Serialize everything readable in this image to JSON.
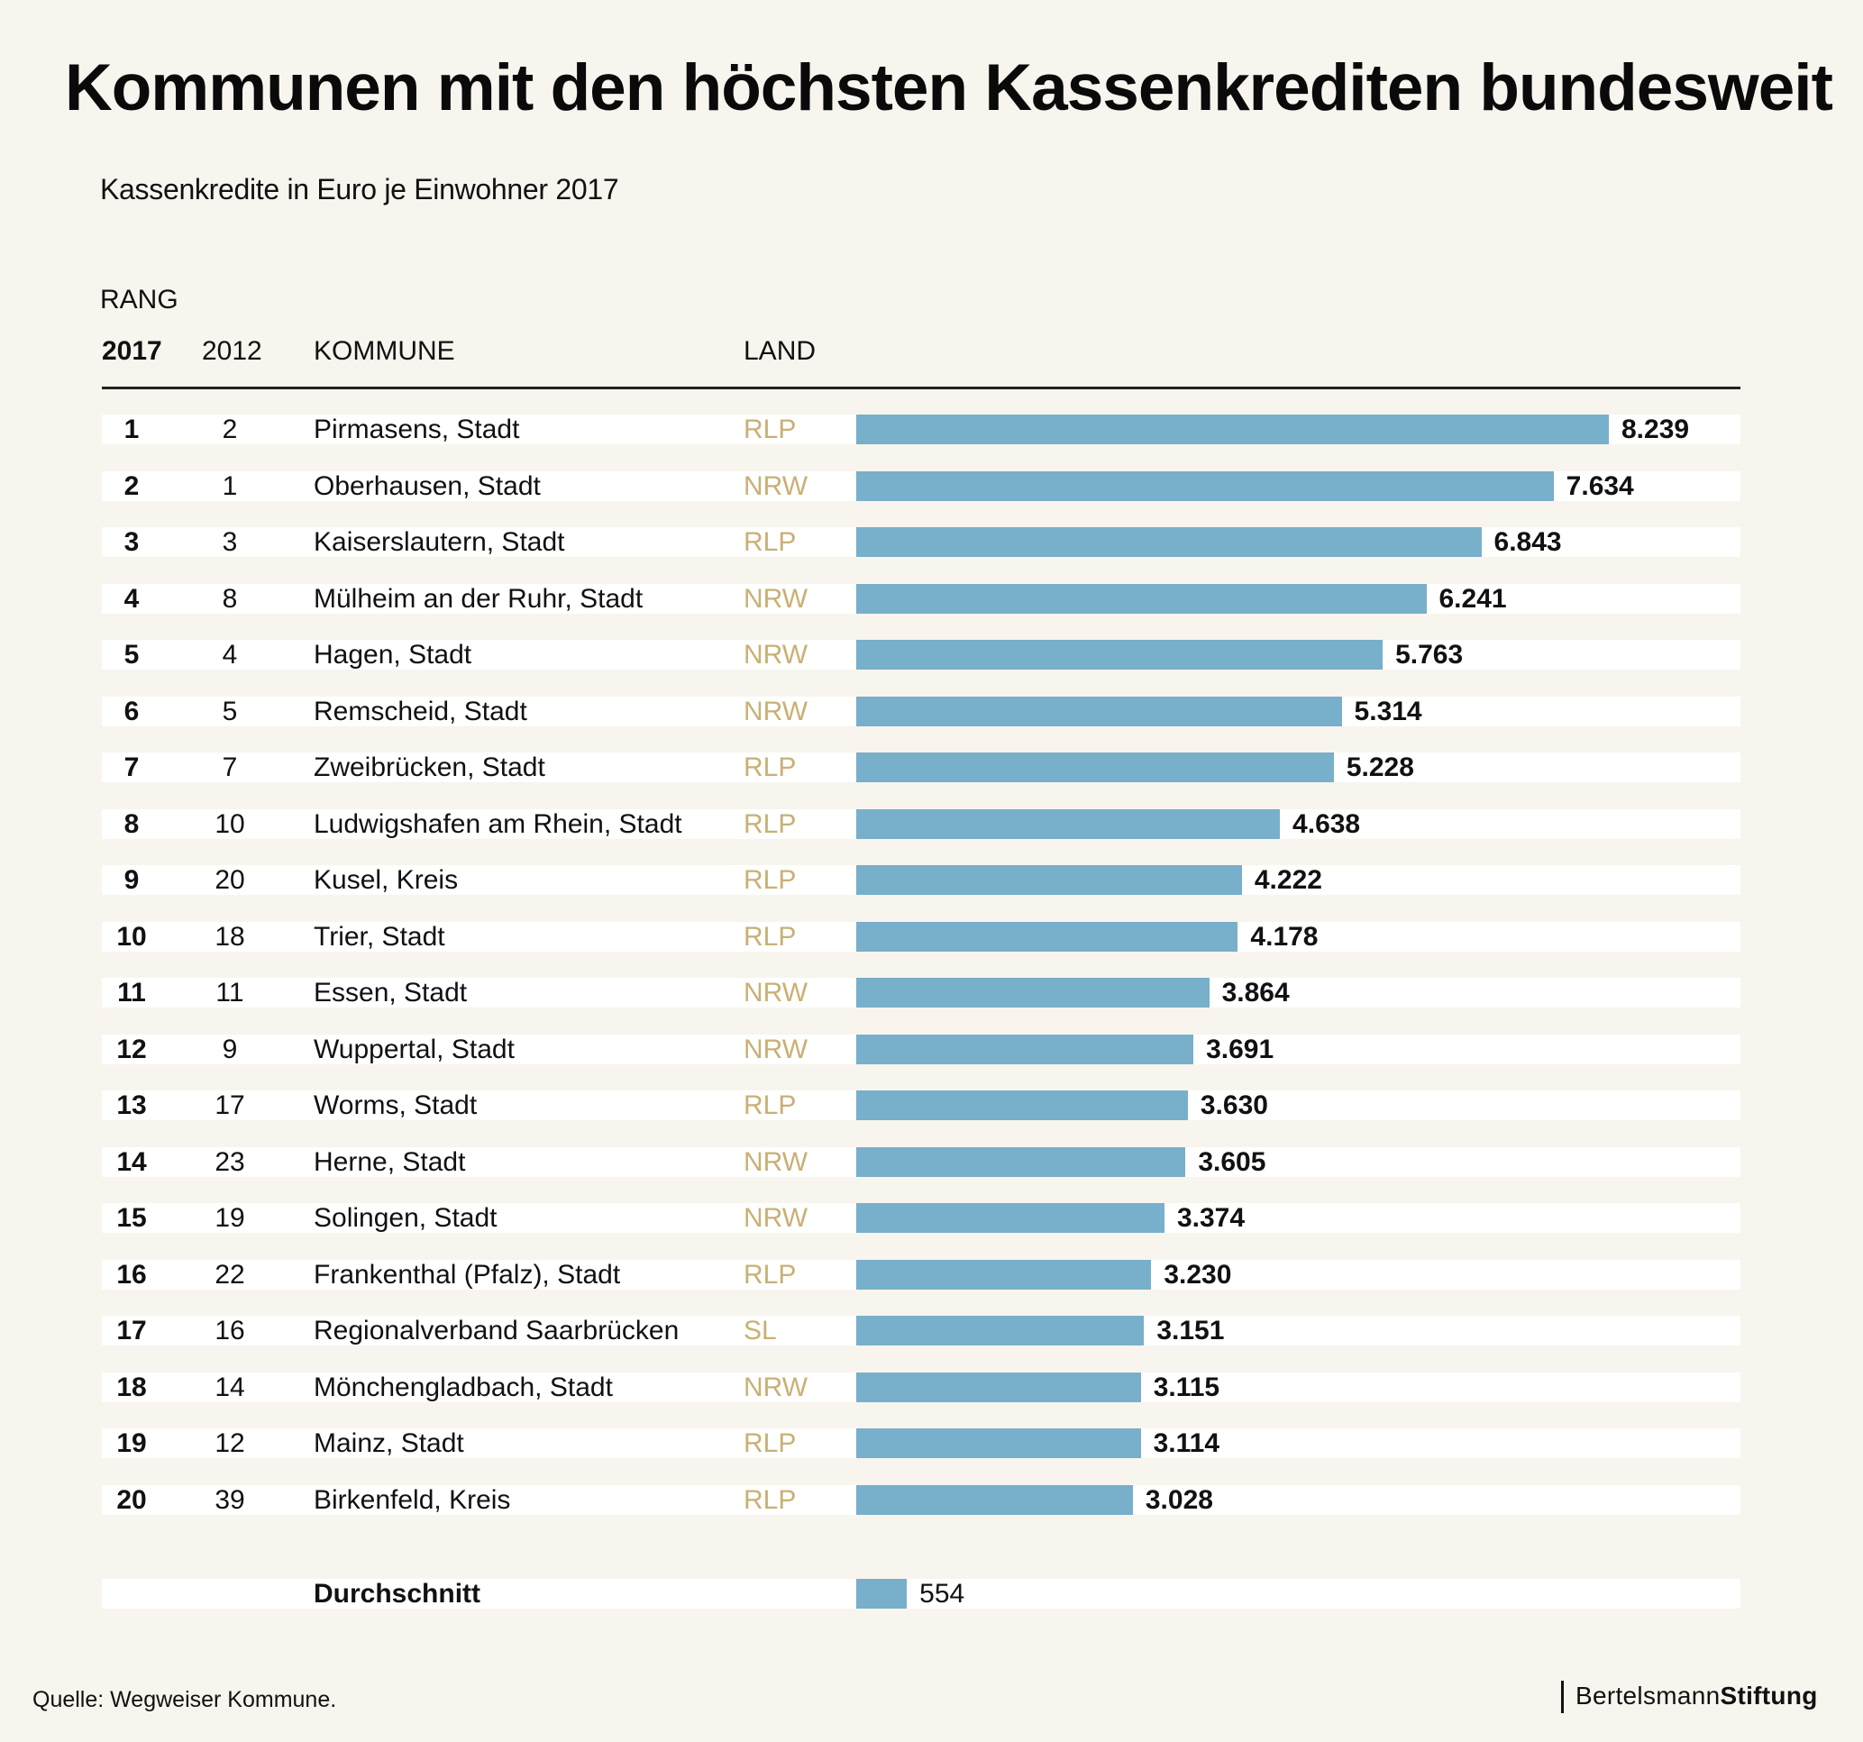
{
  "header": {
    "title": "Kommunen mit den höchsten Kassenkrediten bundesweit",
    "subtitle": "Kassenkredite in Euro je Einwohner 2017"
  },
  "table_header": {
    "rang": "RANG",
    "col_2017": "2017",
    "col_2012": "2012",
    "col_kommune": "KOMMUNE",
    "col_land": "LAND"
  },
  "colors": {
    "bar": "#78afca",
    "land_text": "#c9b074",
    "background": "#f8f5ee"
  },
  "chart_data": {
    "type": "bar",
    "orientation": "horizontal",
    "title": "Kommunen mit den höchsten Kassenkrediten bundesweit",
    "subtitle": "Kassenkredite in Euro je Einwohner 2017",
    "unit": "Euro je Einwohner",
    "xlim": [
      0,
      8239
    ],
    "grid": false,
    "rows": [
      {
        "rank_2017": "1",
        "rank_2012": "2",
        "kommune": "Pirmasens, Stadt",
        "land": "RLP",
        "value": 8239,
        "label": "8.239"
      },
      {
        "rank_2017": "2",
        "rank_2012": "1",
        "kommune": "Oberhausen, Stadt",
        "land": "NRW",
        "value": 7634,
        "label": "7.634"
      },
      {
        "rank_2017": "3",
        "rank_2012": "3",
        "kommune": "Kaiserslautern, Stadt",
        "land": "RLP",
        "value": 6843,
        "label": "6.843"
      },
      {
        "rank_2017": "4",
        "rank_2012": "8",
        "kommune": "Mülheim an der Ruhr, Stadt",
        "land": "NRW",
        "value": 6241,
        "label": "6.241"
      },
      {
        "rank_2017": "5",
        "rank_2012": "4",
        "kommune": "Hagen, Stadt",
        "land": "NRW",
        "value": 5763,
        "label": "5.763"
      },
      {
        "rank_2017": "6",
        "rank_2012": "5",
        "kommune": "Remscheid, Stadt",
        "land": "NRW",
        "value": 5314,
        "label": "5.314"
      },
      {
        "rank_2017": "7",
        "rank_2012": "7",
        "kommune": "Zweibrücken, Stadt",
        "land": "RLP",
        "value": 5228,
        "label": "5.228"
      },
      {
        "rank_2017": "8",
        "rank_2012": "10",
        "kommune": "Ludwigshafen am Rhein, Stadt",
        "land": "RLP",
        "value": 4638,
        "label": "4.638"
      },
      {
        "rank_2017": "9",
        "rank_2012": "20",
        "kommune": "Kusel, Kreis",
        "land": "RLP",
        "value": 4222,
        "label": "4.222"
      },
      {
        "rank_2017": "10",
        "rank_2012": "18",
        "kommune": "Trier, Stadt",
        "land": "RLP",
        "value": 4178,
        "label": "4.178"
      },
      {
        "rank_2017": "11",
        "rank_2012": "11",
        "kommune": "Essen, Stadt",
        "land": "NRW",
        "value": 3864,
        "label": "3.864"
      },
      {
        "rank_2017": "12",
        "rank_2012": "9",
        "kommune": "Wuppertal, Stadt",
        "land": "NRW",
        "value": 3691,
        "label": "3.691"
      },
      {
        "rank_2017": "13",
        "rank_2012": "17",
        "kommune": "Worms, Stadt",
        "land": "RLP",
        "value": 3630,
        "label": "3.630"
      },
      {
        "rank_2017": "14",
        "rank_2012": "23",
        "kommune": "Herne, Stadt",
        "land": "NRW",
        "value": 3605,
        "label": "3.605"
      },
      {
        "rank_2017": "15",
        "rank_2012": "19",
        "kommune": "Solingen, Stadt",
        "land": "NRW",
        "value": 3374,
        "label": "3.374"
      },
      {
        "rank_2017": "16",
        "rank_2012": "22",
        "kommune": "Frankenthal (Pfalz), Stadt",
        "land": "RLP",
        "value": 3230,
        "label": "3.230"
      },
      {
        "rank_2017": "17",
        "rank_2012": "16",
        "kommune": "Regionalverband Saarbrücken",
        "land": "SL",
        "value": 3151,
        "label": "3.151"
      },
      {
        "rank_2017": "18",
        "rank_2012": "14",
        "kommune": "Mönchengladbach, Stadt",
        "land": "NRW",
        "value": 3115,
        "label": "3.115"
      },
      {
        "rank_2017": "19",
        "rank_2012": "12",
        "kommune": "Mainz, Stadt",
        "land": "RLP",
        "value": 3114,
        "label": "3.114"
      },
      {
        "rank_2017": "20",
        "rank_2012": "39",
        "kommune": "Birkenfeld, Kreis",
        "land": "RLP",
        "value": 3028,
        "label": "3.028"
      }
    ],
    "average": {
      "kommune": "Durchschnitt",
      "value": 554,
      "label": "554"
    }
  },
  "footer": {
    "source": "Quelle: Wegweiser Kommune.",
    "logo_light": "Bertelsmann",
    "logo_bold": "Stiftung"
  }
}
